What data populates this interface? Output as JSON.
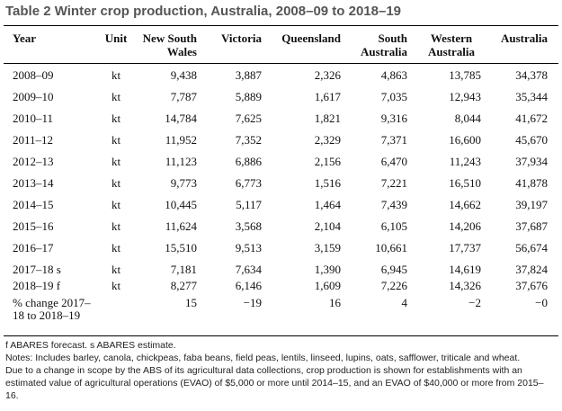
{
  "title": "Table 2 Winter crop production, Australia, 2008–09 to 2018–19",
  "headers": {
    "year": "Year",
    "unit": "Unit",
    "nsw_1": "New South",
    "nsw_2": "Wales",
    "vic": "Victoria",
    "qld": "Queensland",
    "sa_1": "South",
    "sa_2": "Australia",
    "wa_1": "Western",
    "wa_2": "Australia",
    "aus": "Australia"
  },
  "rows": [
    {
      "year": "2008–09",
      "unit": "kt",
      "nsw": "9,438",
      "vic": "3,887",
      "qld": "2,326",
      "sa": "4,863",
      "wa": "13,785",
      "aus": "34,378"
    },
    {
      "year": "2009–10",
      "unit": "kt",
      "nsw": "7,787",
      "vic": "5,889",
      "qld": "1,617",
      "sa": "7,035",
      "wa": "12,943",
      "aus": "35,344"
    },
    {
      "year": "2010–11",
      "unit": "kt",
      "nsw": "14,784",
      "vic": "7,625",
      "qld": "1,821",
      "sa": "9,316",
      "wa": "8,044",
      "aus": "41,672"
    },
    {
      "year": "2011–12",
      "unit": "kt",
      "nsw": "11,952",
      "vic": "7,352",
      "qld": "2,329",
      "sa": "7,371",
      "wa": "16,600",
      "aus": "45,670"
    },
    {
      "year": "2012–13",
      "unit": "kt",
      "nsw": "11,123",
      "vic": "6,886",
      "qld": "2,156",
      "sa": "6,470",
      "wa": "11,243",
      "aus": "37,934"
    },
    {
      "year": "2013–14",
      "unit": "kt",
      "nsw": "9,773",
      "vic": "6,773",
      "qld": "1,516",
      "sa": "7,221",
      "wa": "16,510",
      "aus": "41,878"
    },
    {
      "year": "2014–15",
      "unit": "kt",
      "nsw": "10,445",
      "vic": "5,117",
      "qld": "1,464",
      "sa": "7,439",
      "wa": "14,662",
      "aus": "39,197"
    },
    {
      "year": "2015–16",
      "unit": "kt",
      "nsw": "11,624",
      "vic": "3,568",
      "qld": "2,104",
      "sa": "6,105",
      "wa": "14,206",
      "aus": "37,687"
    },
    {
      "year": "2016–17",
      "unit": "kt",
      "nsw": "15,510",
      "vic": "9,513",
      "qld": "3,159",
      "sa": "10,661",
      "wa": "17,737",
      "aus": "56,674"
    },
    {
      "year": "2017–18 s",
      "unit": "kt",
      "nsw": "7,181",
      "vic": "7,634",
      "qld": "1,390",
      "sa": "6,945",
      "wa": "14,619",
      "aus": "37,824"
    },
    {
      "year": "2018–19 f",
      "unit": "kt",
      "nsw": "8,277",
      "vic": "6,146",
      "qld": "1,609",
      "sa": "7,226",
      "wa": "14,326",
      "aus": "37,676"
    }
  ],
  "pct_change": {
    "label": "% change 2017–18 to 2018–19",
    "nsw": "15",
    "vic": "−19",
    "qld": "16",
    "sa": "4",
    "wa": "−2",
    "aus": "−0"
  },
  "notes": {
    "line1": "f ABARES forecast. s ABARES estimate.",
    "line2": "Notes: Includes barley, canola, chickpeas, faba beans, field peas, lentils, linseed, lupins, oats, safflower, triticale and wheat.",
    "line3": "Due to a change in scope by the ABS of its agricultural data collections, crop production is shown for establishments with an estimated value of agricultural operations (EVAO) of $5,000 or more until 2014–15, and an EVAO of $40,000 or more from 2015–16."
  }
}
